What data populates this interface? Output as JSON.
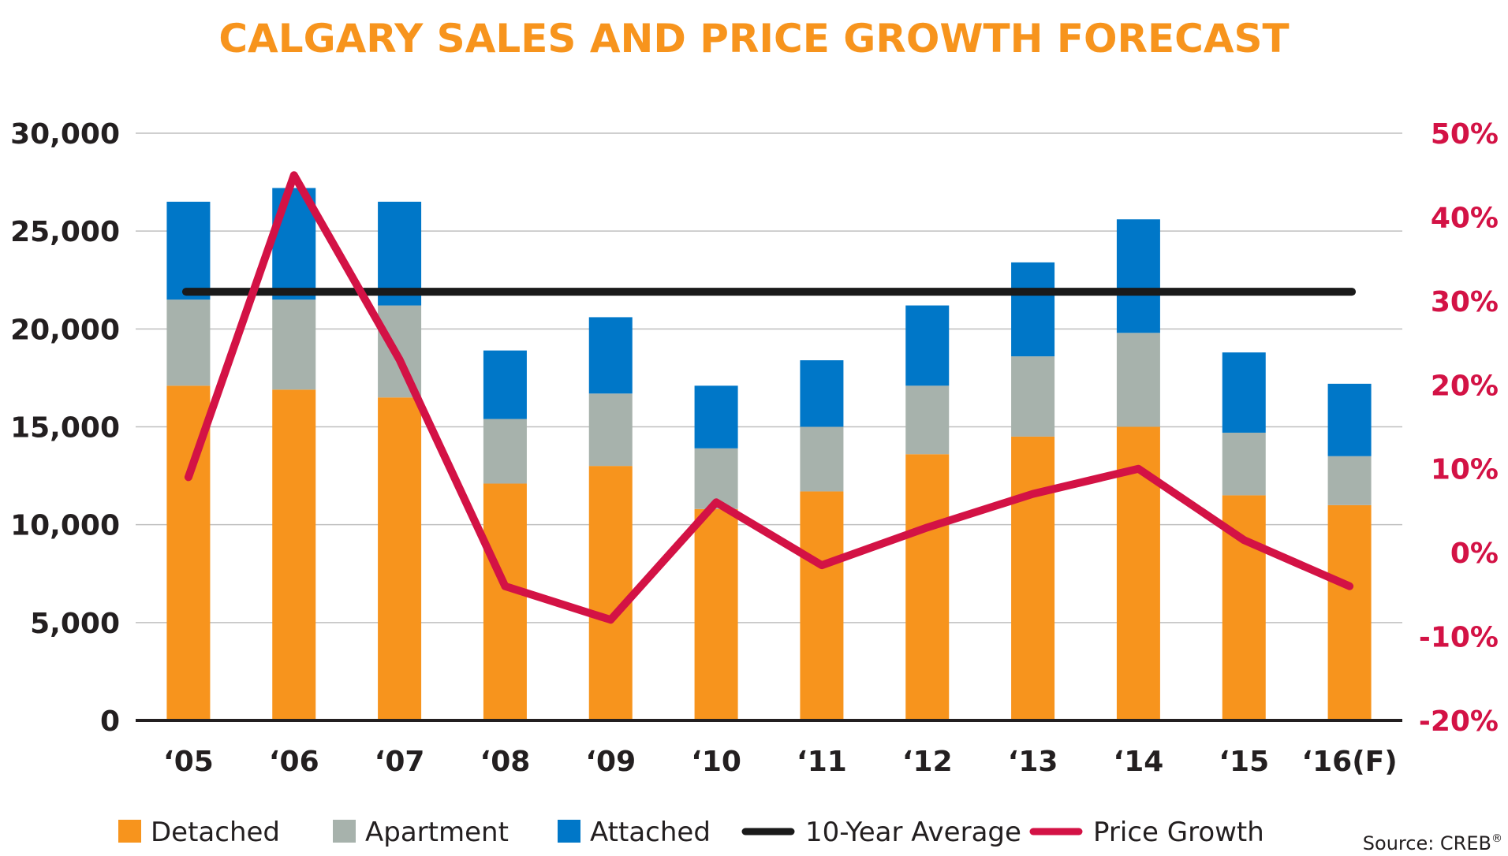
{
  "chart_data": {
    "type": "bar",
    "stacked": true,
    "title": "CALGARY SALES AND PRICE GROWTH FORECAST",
    "categories": [
      "‘05",
      "‘06",
      "‘07",
      "‘08",
      "‘09",
      "‘10",
      "‘11",
      "‘12",
      "‘13",
      "‘14",
      "‘15",
      "‘16(F)"
    ],
    "series": [
      {
        "name": "Detached",
        "type": "bar",
        "axis": "left",
        "color": "#F7941D",
        "values": [
          17100,
          16900,
          16500,
          12100,
          13000,
          10800,
          11700,
          13600,
          14500,
          15000,
          11500,
          11000
        ]
      },
      {
        "name": "Apartment",
        "type": "bar",
        "axis": "left",
        "color": "#A7B2AC",
        "values": [
          4400,
          4600,
          4700,
          3300,
          3700,
          3100,
          3300,
          3500,
          4100,
          4800,
          3200,
          2500
        ]
      },
      {
        "name": "Attached",
        "type": "bar",
        "axis": "left",
        "color": "#0077C8",
        "values": [
          5000,
          5700,
          5300,
          3500,
          3900,
          3200,
          3400,
          4100,
          4800,
          5800,
          4100,
          3700
        ]
      },
      {
        "name": "10-Year Average",
        "type": "line",
        "axis": "left",
        "color": "#1A1A1A",
        "values": [
          21900,
          21900,
          21900,
          21900,
          21900,
          21900,
          21900,
          21900,
          21900,
          21900,
          21900,
          21900
        ]
      },
      {
        "name": "Price Growth",
        "type": "line",
        "axis": "right",
        "color": "#D31245",
        "values": [
          9,
          45,
          23,
          -4,
          -8,
          6,
          -1.5,
          3,
          7,
          10,
          1.5,
          -4
        ]
      }
    ],
    "y_left": {
      "ylim": [
        0,
        30000
      ],
      "ticks": [
        "0",
        "5,000",
        "10,000",
        "15,000",
        "20,000",
        "25,000",
        "30,000"
      ]
    },
    "y_right": {
      "ylim": [
        -20,
        50
      ],
      "ticks": [
        "-20%",
        "-10%",
        "0%",
        "10%",
        "20%",
        "30%",
        "40%",
        "50%"
      ]
    },
    "grid": true,
    "legend_position": "bottom",
    "colors": {
      "title": "#F7941D",
      "right_axis": "#D31245",
      "grid": "#BFBFBF",
      "text": "#231F20"
    }
  },
  "source_prefix": "Source: CREB",
  "source_mark": "®"
}
